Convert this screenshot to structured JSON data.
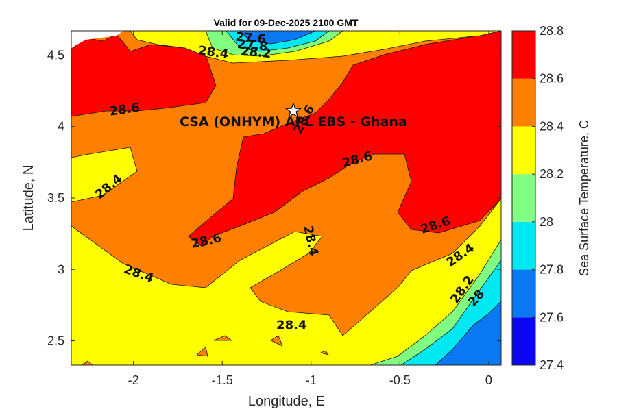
{
  "chart_data": {
    "type": "heatmap",
    "subtype": "filled-contour",
    "title": "Valid for 09-Dec-2025 2100 GMT",
    "xlabel": "Longitude, E",
    "ylabel": "Latitude, N",
    "xlim": [
      -2.35,
      0.07
    ],
    "ylim": [
      2.33,
      4.67
    ],
    "xticks": [
      -2,
      -1.5,
      -1,
      -0.5,
      0
    ],
    "xtick_labels": [
      "-2",
      "-1.5",
      "-1",
      "-0.5",
      "0"
    ],
    "yticks": [
      2.5,
      3,
      3.5,
      4,
      4.5
    ],
    "ytick_labels": [
      "2.5",
      "3",
      "3.5",
      "4",
      "4.5"
    ],
    "grid": false,
    "colorbar": {
      "label": "Sea Surface Temperature, C",
      "levels": [
        27.4,
        27.6,
        27.8,
        28.0,
        28.2,
        28.4,
        28.6,
        28.8
      ],
      "tick_labels": [
        "27.4",
        "27.6",
        "27.8",
        "28",
        "28.2",
        "28.4",
        "28.6",
        "28.8"
      ],
      "colors": [
        "#0a06f2",
        "#0a78f2",
        "#00e8f2",
        "#80ff80",
        "#ffff00",
        "#ff8000",
        "#ff0000"
      ]
    },
    "contour_labels": [
      {
        "text": "27.6",
        "lon": -1.34,
        "lat": 4.62,
        "angle": 5
      },
      {
        "text": "27.8",
        "lon": -1.33,
        "lat": 4.57,
        "angle": 5
      },
      {
        "text": "28.2",
        "lon": -1.31,
        "lat": 4.52,
        "angle": 5
      },
      {
        "text": "28.4",
        "lon": -1.55,
        "lat": 4.52,
        "angle": 8
      },
      {
        "text": "28.6",
        "lon": -2.05,
        "lat": 4.12,
        "angle": -8
      },
      {
        "text": "28.6",
        "lon": -1.04,
        "lat": 4.05,
        "angle": -62
      },
      {
        "text": "28.6",
        "lon": -0.74,
        "lat": 3.77,
        "angle": -15
      },
      {
        "text": "28.4",
        "lon": -2.14,
        "lat": 3.58,
        "angle": -40
      },
      {
        "text": "28.6",
        "lon": -1.59,
        "lat": 3.2,
        "angle": -12
      },
      {
        "text": "28.4",
        "lon": -1.0,
        "lat": 3.2,
        "angle": 78
      },
      {
        "text": "28.6",
        "lon": -0.3,
        "lat": 3.31,
        "angle": -18
      },
      {
        "text": "28.4",
        "lon": -1.97,
        "lat": 2.97,
        "angle": 20
      },
      {
        "text": "28.4",
        "lon": -0.16,
        "lat": 3.1,
        "angle": -35
      },
      {
        "text": "28.2",
        "lon": -0.15,
        "lat": 2.86,
        "angle": -55
      },
      {
        "text": "28",
        "lon": -0.07,
        "lat": 2.8,
        "angle": -48
      },
      {
        "text": "28.4",
        "lon": -1.11,
        "lat": 2.61,
        "angle": 0
      }
    ],
    "marker": {
      "label": "CSA (ONHYM) APL EBS  - Ghana",
      "lon": -1.1,
      "lat": 4.11,
      "symbol": "star"
    }
  }
}
